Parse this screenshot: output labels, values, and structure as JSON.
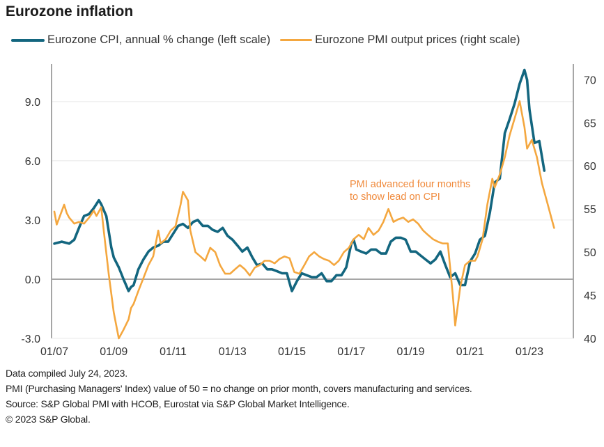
{
  "title": "Eurozone inflation",
  "legend": {
    "cpi_label": "Eurozone CPI, annual % change (left scale)",
    "pmi_label": "Eurozone PMI output prices (right scale)"
  },
  "colors": {
    "cpi": "#13667f",
    "pmi": "#f4a73f",
    "annotation": "#f08a3c",
    "axis": "#a6a6a6",
    "gridline": "#ececec"
  },
  "annotation": {
    "line1": "PMI advanced four months",
    "line2": "to show lead on CPI"
  },
  "footer": {
    "line1": "Data compiled July 24, 2023.",
    "line2": "PMI (Purchasing Managers' Index) value of 50 = no change on prior month, covers manufacturing and services.",
    "line3": "Source: S&P Global PMI with HCOB, Eurostat via S&P Global Market Intelligence.",
    "line4": "© 2023 S&P Global."
  },
  "chart_data": {
    "type": "line",
    "title": "Eurozone inflation",
    "xlabel": "",
    "ylabel_left": "",
    "ylabel_right": "",
    "x_tick_labels": [
      "01/07",
      "01/09",
      "01/11",
      "01/13",
      "01/15",
      "01/17",
      "01/19",
      "01/21",
      "01/23"
    ],
    "x_tick_years": [
      2007,
      2009,
      2011,
      2013,
      2015,
      2017,
      2019,
      2021,
      2023
    ],
    "xlim": [
      2007.0,
      2024.2
    ],
    "y_left": {
      "ticks": [
        "-3.0",
        "0.0",
        "3.0",
        "6.0",
        "9.0"
      ],
      "tick_values": [
        -3,
        0,
        3,
        6,
        9
      ],
      "lim": [
        -3,
        10.9
      ]
    },
    "y_right": {
      "ticks": [
        "40",
        "45",
        "50",
        "55",
        "60",
        "65",
        "70"
      ],
      "tick_values": [
        40,
        45,
        50,
        55,
        60,
        65,
        70
      ],
      "lim": [
        40,
        71.8
      ]
    },
    "grid": true,
    "zero_line_left": 0,
    "legend_position": "top",
    "series": [
      {
        "name": "Eurozone CPI, annual % change (left scale)",
        "axis": "left",
        "x": [
          2007.0,
          2007.25,
          2007.5,
          2007.67,
          2007.83,
          2008.0,
          2008.17,
          2008.33,
          2008.5,
          2008.58,
          2008.75,
          2008.92,
          2009.0,
          2009.17,
          2009.33,
          2009.5,
          2009.58,
          2009.67,
          2009.83,
          2010.0,
          2010.17,
          2010.33,
          2010.5,
          2010.67,
          2010.83,
          2011.0,
          2011.17,
          2011.33,
          2011.5,
          2011.67,
          2011.83,
          2012.0,
          2012.17,
          2012.33,
          2012.5,
          2012.67,
          2012.83,
          2013.0,
          2013.17,
          2013.33,
          2013.5,
          2013.67,
          2013.83,
          2014.0,
          2014.17,
          2014.33,
          2014.5,
          2014.67,
          2014.83,
          2015.0,
          2015.17,
          2015.33,
          2015.5,
          2015.67,
          2015.83,
          2016.0,
          2016.17,
          2016.33,
          2016.5,
          2016.67,
          2016.83,
          2017.0,
          2017.08,
          2017.17,
          2017.33,
          2017.5,
          2017.67,
          2017.83,
          2018.0,
          2018.17,
          2018.33,
          2018.5,
          2018.67,
          2018.83,
          2019.0,
          2019.17,
          2019.33,
          2019.5,
          2019.67,
          2019.83,
          2020.0,
          2020.17,
          2020.33,
          2020.5,
          2020.67,
          2020.83,
          2021.0,
          2021.17,
          2021.33,
          2021.5,
          2021.67,
          2021.83,
          2022.0,
          2022.17,
          2022.33,
          2022.5,
          2022.67,
          2022.83,
          2022.92,
          2023.0,
          2023.17,
          2023.33,
          2023.5
        ],
        "values": [
          1.8,
          1.9,
          1.8,
          2.0,
          2.6,
          3.2,
          3.3,
          3.6,
          4.0,
          3.8,
          3.2,
          1.6,
          1.1,
          0.6,
          0.0,
          -0.6,
          -0.4,
          -0.3,
          0.5,
          1.0,
          1.4,
          1.6,
          1.7,
          1.9,
          1.9,
          2.3,
          2.7,
          2.8,
          2.6,
          2.9,
          3.0,
          2.7,
          2.7,
          2.5,
          2.4,
          2.6,
          2.2,
          2.0,
          1.7,
          1.4,
          1.6,
          1.1,
          0.7,
          0.8,
          0.5,
          0.5,
          0.4,
          0.3,
          0.3,
          -0.6,
          -0.1,
          0.3,
          0.2,
          0.1,
          0.1,
          0.3,
          -0.1,
          -0.1,
          0.2,
          0.2,
          0.6,
          1.8,
          2.0,
          1.5,
          1.4,
          1.3,
          1.5,
          1.5,
          1.3,
          1.3,
          1.9,
          2.1,
          2.1,
          2.0,
          1.4,
          1.4,
          1.2,
          1.0,
          0.8,
          1.0,
          1.4,
          0.7,
          0.1,
          0.3,
          -0.3,
          -0.3,
          0.9,
          1.3,
          2.0,
          2.2,
          3.4,
          4.9,
          5.1,
          7.4,
          8.1,
          8.9,
          9.9,
          10.6,
          10.1,
          8.6,
          6.9,
          7.0,
          5.5
        ]
      },
      {
        "name": "Eurozone PMI output prices (right scale)",
        "axis": "right",
        "x": [
          2007.0,
          2007.08,
          2007.17,
          2007.33,
          2007.42,
          2007.5,
          2007.67,
          2007.83,
          2008.0,
          2008.17,
          2008.33,
          2008.42,
          2008.58,
          2008.67,
          2008.83,
          2009.0,
          2009.17,
          2009.33,
          2009.5,
          2009.58,
          2009.67,
          2009.83,
          2010.0,
          2010.17,
          2010.33,
          2010.5,
          2010.58,
          2010.75,
          2010.92,
          2011.08,
          2011.25,
          2011.33,
          2011.5,
          2011.58,
          2011.75,
          2011.92,
          2012.08,
          2012.25,
          2012.42,
          2012.58,
          2012.75,
          2012.92,
          2013.08,
          2013.25,
          2013.42,
          2013.58,
          2013.75,
          2013.92,
          2014.08,
          2014.25,
          2014.42,
          2014.58,
          2014.75,
          2014.92,
          2015.08,
          2015.25,
          2015.42,
          2015.58,
          2015.75,
          2015.92,
          2016.08,
          2016.25,
          2016.42,
          2016.58,
          2016.75,
          2016.92,
          2017.08,
          2017.25,
          2017.42,
          2017.58,
          2017.75,
          2017.92,
          2018.08,
          2018.25,
          2018.42,
          2018.58,
          2018.75,
          2018.92,
          2019.08,
          2019.25,
          2019.42,
          2019.58,
          2019.75,
          2019.92,
          2020.08,
          2020.25,
          2020.42,
          2020.5,
          2020.67,
          2020.83,
          2021.0,
          2021.17,
          2021.25,
          2021.42,
          2021.58,
          2021.75,
          2021.83,
          2022.0,
          2022.17,
          2022.33,
          2022.5,
          2022.67,
          2022.83,
          2022.92,
          2023.08,
          2023.25,
          2023.42,
          2023.58,
          2023.75,
          2023.83
        ],
        "values": [
          54.7,
          53.2,
          54.0,
          55.5,
          54.5,
          54.0,
          53.3,
          53.5,
          53.3,
          54.0,
          54.8,
          54.2,
          55.2,
          52.3,
          47.5,
          43.0,
          40.0,
          41.0,
          42.2,
          43.5,
          44.0,
          45.5,
          47.0,
          48.5,
          49.5,
          52.5,
          51.0,
          51.5,
          52.5,
          53.0,
          55.5,
          57.0,
          56.0,
          52.5,
          50.0,
          49.5,
          49.0,
          50.5,
          50.0,
          48.5,
          47.5,
          47.5,
          48.0,
          48.5,
          48.0,
          47.3,
          48.2,
          48.5,
          49.0,
          49.0,
          48.7,
          49.2,
          49.5,
          49.3,
          47.7,
          47.5,
          48.5,
          49.5,
          50.0,
          49.5,
          49.2,
          49.0,
          48.5,
          49.0,
          50.0,
          50.5,
          51.5,
          52.0,
          51.5,
          52.8,
          52.0,
          52.5,
          53.5,
          55.0,
          53.5,
          53.8,
          54.0,
          53.5,
          53.8,
          53.3,
          52.5,
          52.0,
          51.5,
          51.2,
          51.0,
          51.0,
          45.0,
          41.5,
          46.0,
          48.5,
          49.0,
          49.0,
          49.5,
          51.5,
          55.5,
          58.5,
          57.5,
          59.0,
          61.0,
          63.5,
          65.5,
          67.5,
          64.5,
          62.0,
          63.0,
          61.0,
          58.0,
          56.0,
          53.8,
          52.8
        ]
      }
    ]
  }
}
